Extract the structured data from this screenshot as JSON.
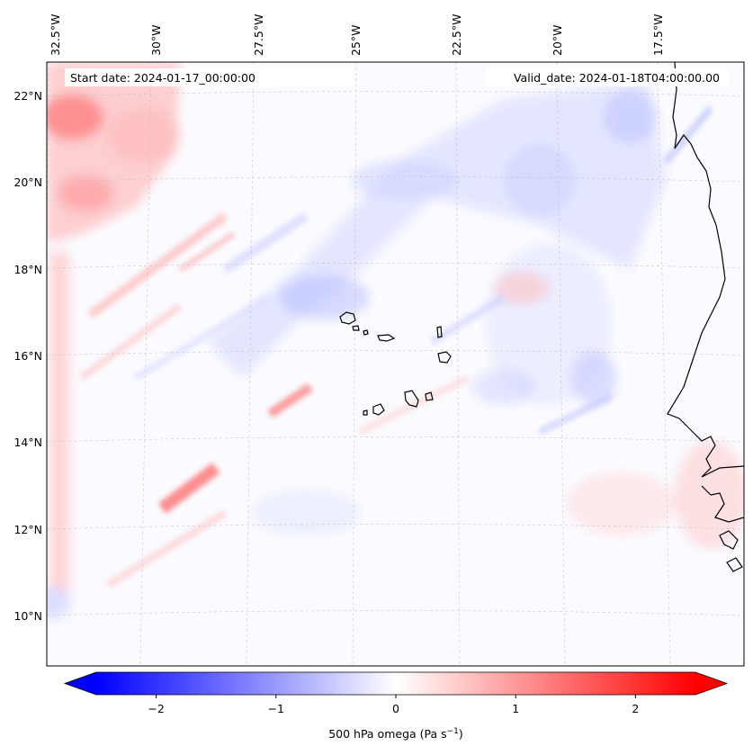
{
  "header": {
    "start_date": "Start date: 2024-01-17_00:00:00",
    "valid_date": "Valid_date: 2024-01-18T04:00:00.00"
  },
  "axes": {
    "lon_labels": [
      "32.5°W",
      "30°W",
      "27.5°W",
      "25°W",
      "22.5°W",
      "20°W",
      "17.5°W"
    ],
    "lat_labels": [
      "22°N",
      "20°N",
      "18°N",
      "16°N",
      "14°N",
      "12°N",
      "10°N"
    ]
  },
  "colorbar": {
    "ticks": [
      "−2",
      "−1",
      "0",
      "1",
      "2"
    ],
    "tick_values": [
      -2,
      -1,
      0,
      1,
      2
    ],
    "range": [
      -2.5,
      2.5
    ],
    "label": "500 hPa omega (Pa s",
    "label_sup": "−1",
    "label_close": ")",
    "colors": {
      "negative": "#0000ff",
      "zero": "#ffffff",
      "positive": "#ff0000"
    }
  },
  "map": {
    "field": "500 hPa omega",
    "style": "filled contours, diverging blue-white-red",
    "gridlines": "dashed, light grey",
    "coastline_color": "#000000",
    "regions": [
      "Cape Verde islands",
      "West African coast"
    ]
  }
}
